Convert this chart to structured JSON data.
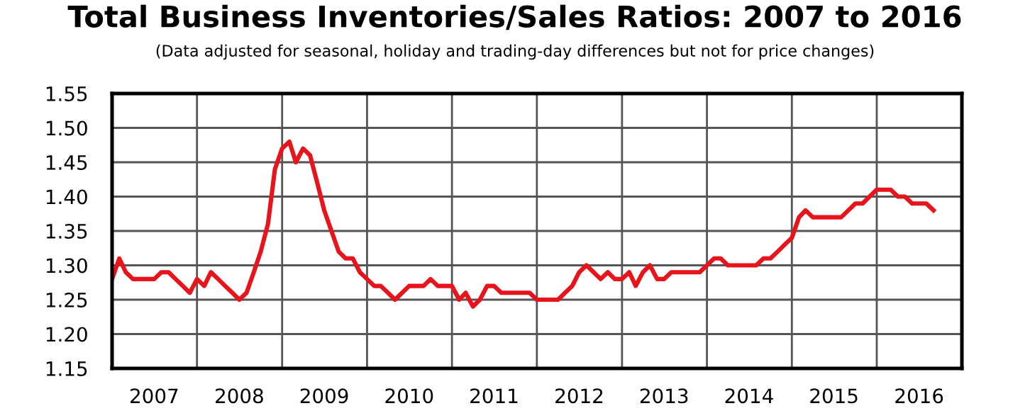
{
  "chart_data": {
    "type": "line",
    "title": "Total Business Inventories/Sales Ratios: 2007 to 2016",
    "subtitle": "(Data adjusted for seasonal, holiday and trading-day differences but not for price changes)",
    "x": [
      "2007-01",
      "2007-02",
      "2007-03",
      "2007-04",
      "2007-05",
      "2007-06",
      "2007-07",
      "2007-08",
      "2007-09",
      "2007-10",
      "2007-11",
      "2007-12",
      "2008-01",
      "2008-02",
      "2008-03",
      "2008-04",
      "2008-05",
      "2008-06",
      "2008-07",
      "2008-08",
      "2008-09",
      "2008-10",
      "2008-11",
      "2008-12",
      "2009-01",
      "2009-02",
      "2009-03",
      "2009-04",
      "2009-05",
      "2009-06",
      "2009-07",
      "2009-08",
      "2009-09",
      "2009-10",
      "2009-11",
      "2009-12",
      "2010-01",
      "2010-02",
      "2010-03",
      "2010-04",
      "2010-05",
      "2010-06",
      "2010-07",
      "2010-08",
      "2010-09",
      "2010-10",
      "2010-11",
      "2010-12",
      "2011-01",
      "2011-02",
      "2011-03",
      "2011-04",
      "2011-05",
      "2011-06",
      "2011-07",
      "2011-08",
      "2011-09",
      "2011-10",
      "2011-11",
      "2011-12",
      "2012-01",
      "2012-02",
      "2012-03",
      "2012-04",
      "2012-05",
      "2012-06",
      "2012-07",
      "2012-08",
      "2012-09",
      "2012-10",
      "2012-11",
      "2012-12",
      "2013-01",
      "2013-02",
      "2013-03",
      "2013-04",
      "2013-05",
      "2013-06",
      "2013-07",
      "2013-08",
      "2013-09",
      "2013-10",
      "2013-11",
      "2013-12",
      "2014-01",
      "2014-02",
      "2014-03",
      "2014-04",
      "2014-05",
      "2014-06",
      "2014-07",
      "2014-08",
      "2014-09",
      "2014-10",
      "2014-11",
      "2014-12",
      "2015-01",
      "2015-02",
      "2015-03",
      "2015-04",
      "2015-05",
      "2015-06",
      "2015-07",
      "2015-08",
      "2015-09",
      "2015-10",
      "2015-11",
      "2015-12",
      "2016-01",
      "2016-02",
      "2016-03",
      "2016-04",
      "2016-05",
      "2016-06",
      "2016-07",
      "2016-08",
      "2016-09"
    ],
    "series": [
      {
        "color": "#e8141b",
        "values": [
          1.28,
          1.31,
          1.29,
          1.28,
          1.28,
          1.28,
          1.28,
          1.29,
          1.29,
          1.28,
          1.27,
          1.26,
          1.28,
          1.27,
          1.29,
          1.28,
          1.27,
          1.26,
          1.25,
          1.26,
          1.29,
          1.32,
          1.36,
          1.44,
          1.47,
          1.48,
          1.45,
          1.47,
          1.46,
          1.42,
          1.38,
          1.35,
          1.32,
          1.31,
          1.31,
          1.29,
          1.28,
          1.27,
          1.27,
          1.26,
          1.25,
          1.26,
          1.27,
          1.27,
          1.27,
          1.28,
          1.27,
          1.27,
          1.27,
          1.25,
          1.26,
          1.24,
          1.25,
          1.27,
          1.27,
          1.26,
          1.26,
          1.26,
          1.26,
          1.26,
          1.25,
          1.25,
          1.25,
          1.25,
          1.26,
          1.27,
          1.29,
          1.3,
          1.29,
          1.28,
          1.29,
          1.28,
          1.28,
          1.29,
          1.27,
          1.29,
          1.3,
          1.28,
          1.28,
          1.29,
          1.29,
          1.29,
          1.29,
          1.29,
          1.3,
          1.31,
          1.31,
          1.3,
          1.3,
          1.3,
          1.3,
          1.3,
          1.31,
          1.31,
          1.32,
          1.33,
          1.34,
          1.37,
          1.38,
          1.37,
          1.37,
          1.37,
          1.37,
          1.37,
          1.38,
          1.39,
          1.39,
          1.4,
          1.41,
          1.41,
          1.41,
          1.4,
          1.4,
          1.39,
          1.39,
          1.39,
          1.38
        ]
      }
    ],
    "xlim": [
      "2007-01",
      "2017-01"
    ],
    "xticks": [
      {
        "value": "2008-01",
        "label": null
      },
      {
        "value": "2009-01",
        "label": null
      },
      {
        "value": "2010-01",
        "label": null
      },
      {
        "value": "2011-01",
        "label": null
      },
      {
        "value": "2012-01",
        "label": null
      },
      {
        "value": "2013-01",
        "label": null
      },
      {
        "value": "2014-01",
        "label": null
      },
      {
        "value": "2015-01",
        "label": null
      },
      {
        "value": "2016-01",
        "label": null
      },
      {
        "value": "2007-07",
        "label": "2007"
      },
      {
        "value": "2008-07",
        "label": "2008"
      },
      {
        "value": "2009-07",
        "label": "2009"
      },
      {
        "value": "2010-07",
        "label": "2010"
      },
      {
        "value": "2011-07",
        "label": "2011"
      },
      {
        "value": "2012-07",
        "label": "2012"
      },
      {
        "value": "2013-07",
        "label": "2013"
      },
      {
        "value": "2014-07",
        "label": "2014"
      },
      {
        "value": "2015-07",
        "label": "2015"
      },
      {
        "value": "2016-07",
        "label": "2016"
      }
    ],
    "ylim": [
      1.15,
      1.55
    ],
    "yticks": [
      {
        "value": 1.15,
        "label": "1.15"
      },
      {
        "value": 1.2,
        "label": "1.20"
      },
      {
        "value": 1.25,
        "label": "1.25"
      },
      {
        "value": 1.3,
        "label": "1.30"
      },
      {
        "value": 1.35,
        "label": "1.35"
      },
      {
        "value": 1.4,
        "label": "1.40"
      },
      {
        "value": 1.45,
        "label": "1.45"
      },
      {
        "value": 1.5,
        "label": "1.50"
      },
      {
        "value": 1.55,
        "label": "1.55"
      }
    ],
    "grid": true,
    "legend": false,
    "marker": "none",
    "line_style": "solid"
  }
}
